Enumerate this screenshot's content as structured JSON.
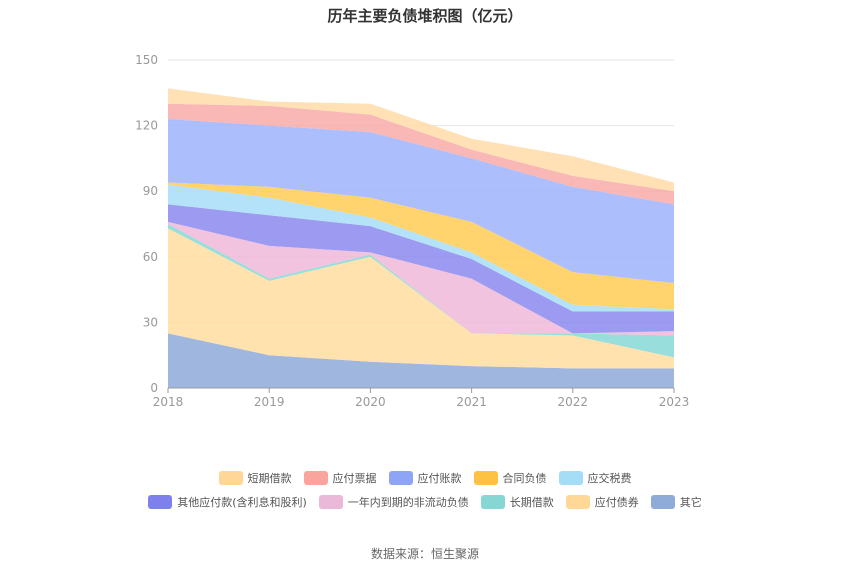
{
  "chart_data": {
    "type": "area",
    "stacked": true,
    "title": "历年主要负债堆积图（亿元）",
    "categories": [
      "2018",
      "2019",
      "2020",
      "2021",
      "2022",
      "2023"
    ],
    "y_ticks": [
      0,
      30,
      60,
      90,
      120,
      150
    ],
    "ylim": [
      0,
      150
    ],
    "series": [
      {
        "name": "其它",
        "color": "#8eaad8",
        "values": [
          25,
          15,
          12,
          10,
          9,
          9
        ]
      },
      {
        "name": "应付债券",
        "color": "#ffdd9f",
        "values": [
          48,
          34,
          48,
          15,
          15,
          5
        ]
      },
      {
        "name": "长期借款",
        "color": "#86d8d6",
        "values": [
          2,
          1,
          1,
          0,
          1,
          10
        ]
      },
      {
        "name": "一年内到期的非流动负债",
        "color": "#eeb9d8",
        "values": [
          1,
          15,
          1,
          25,
          0,
          2
        ]
      },
      {
        "name": "其他应付款(含利息和股利)",
        "color": "#8b88ee",
        "values": [
          8,
          14,
          12,
          9,
          10,
          9
        ]
      },
      {
        "name": "应交税费",
        "color": "#a7def8",
        "values": [
          9,
          8,
          4,
          3,
          3,
          1
        ]
      },
      {
        "name": "合同负债",
        "color": "#ffcc55",
        "values": [
          1,
          5,
          9,
          14,
          15,
          12
        ]
      },
      {
        "name": "应付账款",
        "color": "#9fb3fb",
        "values": [
          29,
          28,
          30,
          29,
          39,
          36
        ]
      },
      {
        "name": "应付票据",
        "color": "#f8aaa8",
        "values": [
          7,
          9,
          8,
          4,
          5,
          6
        ]
      },
      {
        "name": "短期借款",
        "color": "#ffdca8",
        "values": [
          7,
          2,
          5,
          5,
          9,
          4
        ]
      }
    ],
    "legend_rows": [
      [
        {
          "name": "短期借款",
          "color": "#ffd697"
        },
        {
          "name": "应付票据",
          "color": "#f9a59e"
        },
        {
          "name": "应付账款",
          "color": "#8ea5f6"
        },
        {
          "name": "合同负债",
          "color": "#fdc243"
        },
        {
          "name": "应交税费",
          "color": "#a5ddf7"
        }
      ],
      [
        {
          "name": "其他应付款(含利息和股利)",
          "color": "#7e80ec"
        },
        {
          "name": "一年内到期的非流动负债",
          "color": "#eab8d8"
        },
        {
          "name": "长期借款",
          "color": "#86d6d3"
        },
        {
          "name": "应付债券",
          "color": "#ffd898"
        },
        {
          "name": "其它",
          "color": "#8fabd7"
        }
      ]
    ]
  },
  "source_label": "数据来源：",
  "source_value": "恒生聚源"
}
